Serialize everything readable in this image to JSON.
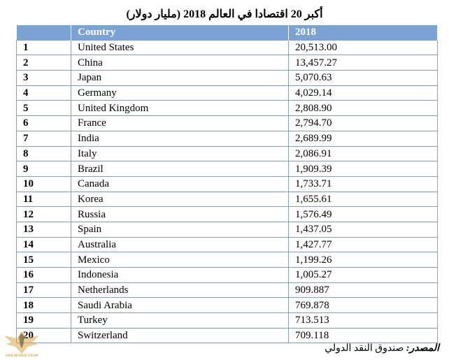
{
  "title": "أكبر 20 اقتصادا في العالم 2018 (مليار دولار)",
  "table": {
    "headers": [
      "",
      "Country",
      "2018"
    ],
    "rows": [
      {
        "rank": "1",
        "country": "United States",
        "value": "20,513.00"
      },
      {
        "rank": "2",
        "country": "China",
        "value": "13,457.27"
      },
      {
        "rank": "3",
        "country": "Japan",
        "value": "5,070.63"
      },
      {
        "rank": "4",
        "country": "Germany",
        "value": "4,029.14"
      },
      {
        "rank": "5",
        "country": "United Kingdom",
        "value": "2,808.90"
      },
      {
        "rank": "6",
        "country": "France",
        "value": "2,794.70"
      },
      {
        "rank": "7",
        "country": "India",
        "value": "2,689.99"
      },
      {
        "rank": "8",
        "country": "Italy",
        "value": "2,086.91"
      },
      {
        "rank": "9",
        "country": "Brazil",
        "value": "1,909.39"
      },
      {
        "rank": "10",
        "country": "Canada",
        "value": "1,733.71"
      },
      {
        "rank": "11",
        "country": "Korea",
        "value": "1,655.61"
      },
      {
        "rank": "12",
        "country": "Russia",
        "value": "1,576.49"
      },
      {
        "rank": "13",
        "country": "Spain",
        "value": "1,437.05"
      },
      {
        "rank": "14",
        "country": "Australia",
        "value": "1,427.77"
      },
      {
        "rank": "15",
        "country": "Mexico",
        "value": "1,199.26"
      },
      {
        "rank": "16",
        "country": "Indonesia",
        "value": "1,005.27"
      },
      {
        "rank": "17",
        "country": "Netherlands",
        "value": "909.887"
      },
      {
        "rank": "18",
        "country": "Saudi Arabia",
        "value": "769.878"
      },
      {
        "rank": "19",
        "country": "Turkey",
        "value": "713.513"
      },
      {
        "rank": "20",
        "country": "Switzerland",
        "value": "709.118"
      }
    ]
  },
  "source": {
    "label": "المصدر:",
    "value": "صندوق النقد الدولي"
  },
  "watermark": {
    "text": "ARAB DEFENSE FORUM",
    "icon": "eagle-emblem-icon"
  },
  "colors": {
    "header_bg": "#7aa3d4",
    "header_text": "#ffffff",
    "border": "#7f9fc8"
  }
}
